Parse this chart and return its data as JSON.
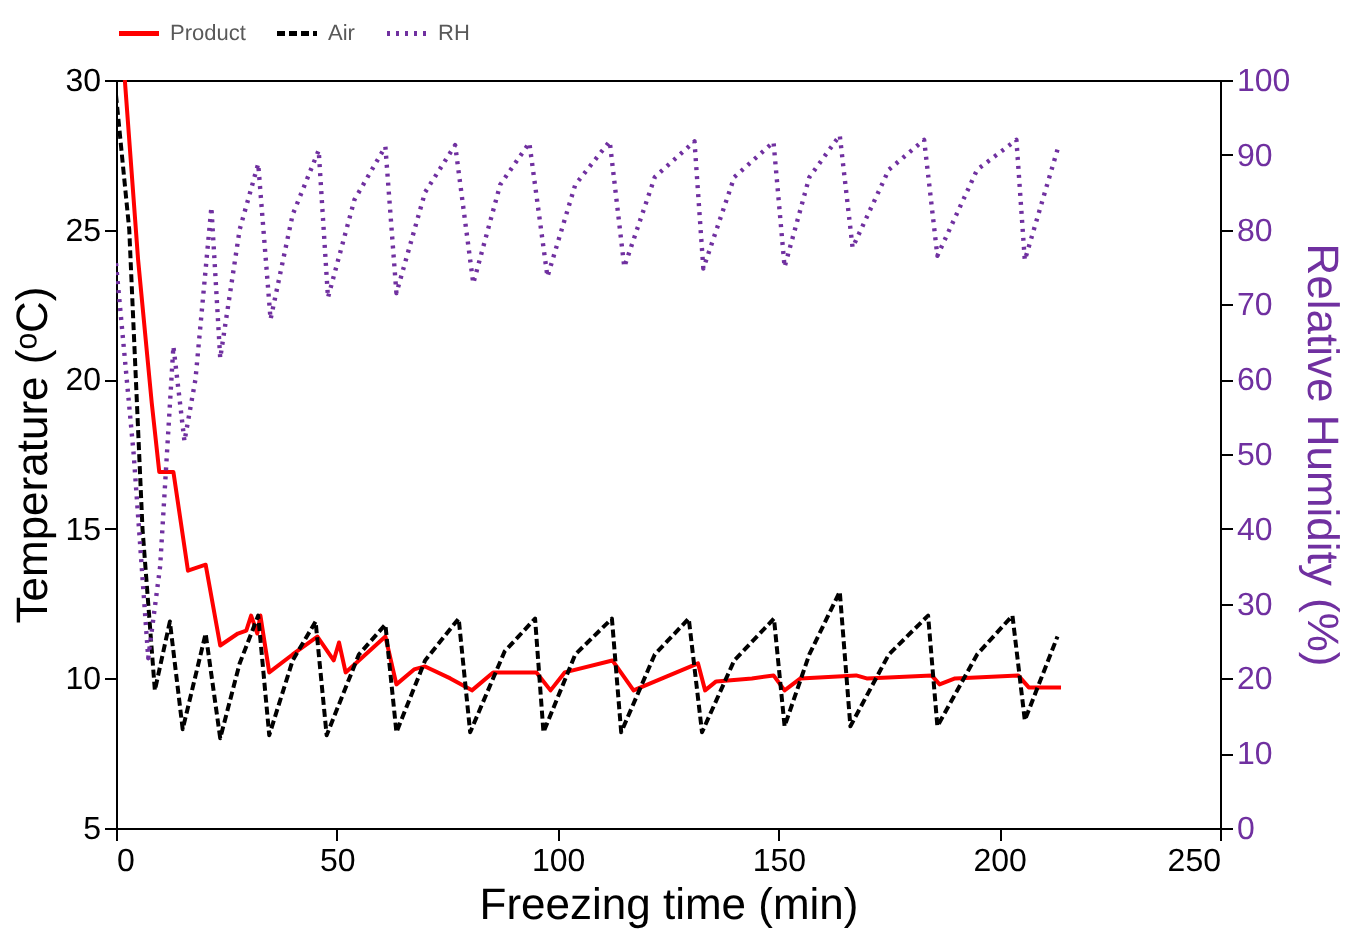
{
  "chart_data": {
    "type": "line",
    "xlabel": "Freezing time (min)",
    "ylabel": "Temperature (ᵒC)",
    "y2label": "Relative Humidity (%)",
    "xlim": [
      0,
      250
    ],
    "xticks": [
      0,
      50,
      100,
      150,
      200,
      250
    ],
    "ylim": [
      5,
      30
    ],
    "yticks": [
      5,
      10,
      15,
      20,
      25,
      30
    ],
    "y2lim": [
      0,
      100
    ],
    "y2ticks": [
      0,
      10,
      20,
      30,
      40,
      50,
      60,
      70,
      80,
      90,
      100
    ],
    "grid": false,
    "legend": "top",
    "marker": "none",
    "series": [
      {
        "name": "Product",
        "color": "#ff0000",
        "line_style": "solid",
        "x": [
          2,
          5,
          8.1,
          9.8,
          13,
          16.3,
          20.3,
          23.6,
          27.6,
          29.5,
          30.6,
          32,
          32.7,
          34.7,
          40,
          45.6,
          49.3,
          50.5,
          52,
          61,
          63.5,
          67.5,
          70,
          75.7,
          80.6,
          85.4,
          95.2,
          98.4,
          101.6,
          112.4,
          117.2,
          131.8,
          133.4,
          135.9,
          144,
          148.9,
          151.4,
          155,
          167.6,
          170,
          184.7,
          186.5,
          190,
          204.3,
          206.7,
          214
        ],
        "values": [
          30,
          24,
          19.2,
          16.9,
          16.9,
          13.6,
          13.8,
          11.1,
          11.5,
          11.6,
          12.1,
          11.5,
          12.1,
          10.2,
          10.8,
          11.4,
          10.6,
          11.2,
          10.2,
          11.4,
          9.8,
          10.3,
          10.4,
          10.0,
          9.6,
          10.2,
          10.2,
          9.6,
          10.2,
          10.6,
          9.6,
          10.5,
          9.6,
          9.9,
          10.0,
          10.1,
          9.6,
          10.0,
          10.1,
          10.0,
          10.1,
          9.8,
          10.0,
          10.1,
          9.7,
          9.7
        ]
      },
      {
        "name": "Air",
        "color": "#000000",
        "line_style": "dashed",
        "x": [
          0,
          3,
          6,
          8.8,
          12.2,
          15.1,
          20.3,
          23.6,
          28,
          32.2,
          34.7,
          40,
          45.2,
          47.7,
          55,
          61,
          63.5,
          70,
          77.6,
          80.2,
          88,
          94.9,
          96.8,
          104,
          112.3,
          114.4,
          122,
          129.7,
          132.7,
          140,
          149,
          151.4,
          157,
          163.9,
          166.3,
          175,
          183.9,
          186,
          195,
          203,
          205.8,
          213.2
        ],
        "values": [
          29.5,
          25,
          15,
          9.6,
          11.9,
          8.3,
          11.5,
          8.0,
          10.5,
          12.1,
          8.1,
          10.6,
          11.9,
          8.1,
          10.8,
          11.8,
          8.2,
          10.6,
          12.0,
          8.2,
          10.9,
          12.0,
          8.2,
          10.8,
          12.0,
          8.2,
          10.8,
          12.0,
          8.2,
          10.6,
          12.0,
          8.4,
          10.8,
          12.9,
          8.4,
          10.8,
          12.1,
          8.4,
          10.8,
          12.1,
          8.6,
          11.4
        ]
      },
      {
        "name": "RH",
        "color": "#7030a0",
        "line_style": "dotted",
        "axis": "y2",
        "x": [
          0,
          4,
          7.3,
          10,
          13,
          15.5,
          18,
          21.6,
          23.6,
          28,
          32.2,
          35,
          40,
          45.9,
          48,
          54,
          61,
          63.5,
          70,
          76.8,
          80.9,
          87,
          93.6,
          97.7,
          104,
          111.8,
          115.1,
          122,
          131,
          133,
          140,
          148.9,
          151.4,
          157,
          163.9,
          166.8,
          175,
          183,
          186,
          195,
          203.9,
          205.8,
          213.2
        ],
        "values": [
          75.5,
          50,
          22.7,
          35,
          64.4,
          51.7,
          60,
          83,
          62.8,
          80,
          88.8,
          68,
          82,
          90.6,
          70.9,
          84,
          91.1,
          71.5,
          85,
          91.3,
          72.8,
          86,
          91.6,
          73.7,
          86,
          91.8,
          75,
          87,
          91.8,
          74.8,
          87,
          91.7,
          75,
          87,
          92.6,
          77.6,
          88,
          92,
          76.5,
          88,
          92,
          75.9,
          90.7
        ]
      }
    ]
  }
}
